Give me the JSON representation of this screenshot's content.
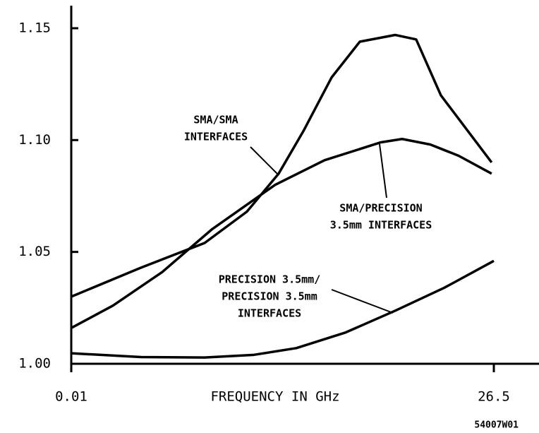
{
  "chart_data": {
    "type": "line",
    "xlabel": "FREQUENCY IN GHz",
    "footnote": "54007W01",
    "xlim": [
      0.01,
      26.5
    ],
    "xticks": [
      0.01,
      26.5
    ],
    "ylim": [
      1.0,
      1.16
    ],
    "yticks": [
      {
        "value": 1.0,
        "label": "1.00"
      },
      {
        "value": 1.05,
        "label": "1.05"
      },
      {
        "value": 1.1,
        "label": "1.10"
      },
      {
        "value": 1.15,
        "label": "1.15"
      }
    ],
    "grid": false,
    "series": [
      {
        "name": "SMA/SMA INTERFACES",
        "color": "#000000",
        "x": [
          0.01,
          4.39,
          8.37,
          11.02,
          13.01,
          14.56,
          16.33,
          18.1,
          20.31,
          21.63,
          23.18,
          26.36
        ],
        "values": [
          1.03,
          1.043,
          1.054,
          1.068,
          1.085,
          1.104,
          1.128,
          1.144,
          1.147,
          1.145,
          1.12,
          1.09
        ]
      },
      {
        "name": "SMA/PRECISION 3.5mm INTERFACES",
        "color": "#000000",
        "x": [
          0.01,
          2.62,
          5.71,
          8.81,
          12.79,
          15.89,
          19.42,
          20.75,
          22.52,
          24.29,
          26.36
        ],
        "values": [
          1.016,
          1.026,
          1.041,
          1.06,
          1.08,
          1.091,
          1.099,
          1.1005,
          1.098,
          1.093,
          1.085
        ]
      },
      {
        "name": "PRECISION 3.5mm/ PRECISION 3.5mm INTERFACES",
        "color": "#000000",
        "x": [
          0.01,
          4.39,
          8.37,
          11.46,
          14.12,
          17.21,
          20.31,
          23.4,
          26.5
        ],
        "values": [
          1.0047,
          1.003,
          1.0028,
          1.004,
          1.007,
          1.014,
          1.0237,
          1.034,
          1.046
        ]
      }
    ],
    "annotations": [
      {
        "lines": [
          "SMA/SMA",
          "INTERFACES"
        ]
      },
      {
        "lines": [
          "SMA/PRECISION",
          "3.5mm INTERFACES"
        ]
      },
      {
        "lines": [
          "PRECISION 3.5mm/",
          "PRECISION 3.5mm",
          "INTERFACES"
        ]
      }
    ]
  }
}
